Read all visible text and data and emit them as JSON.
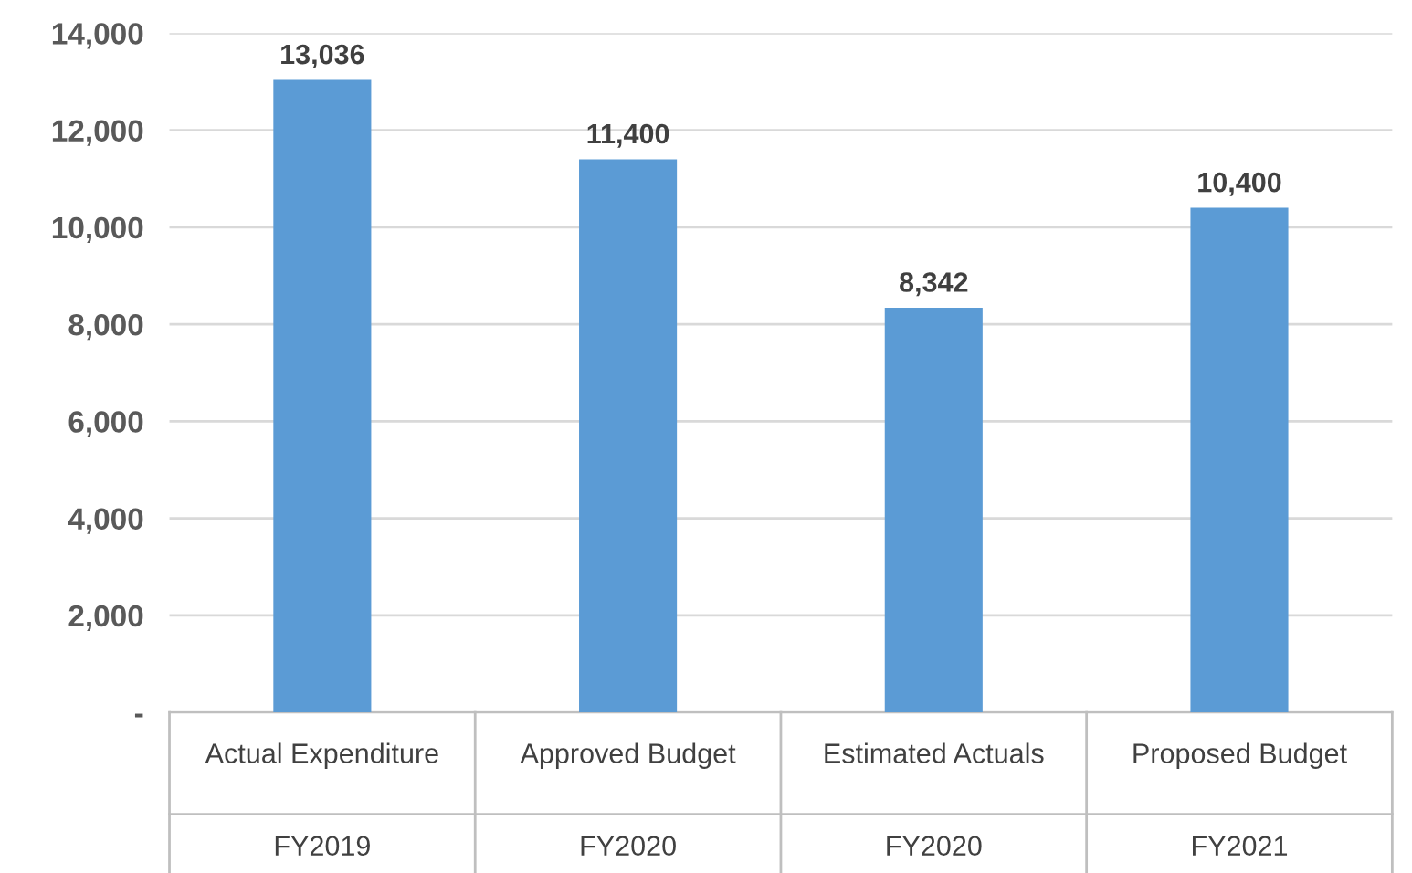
{
  "chart_data": {
    "type": "bar",
    "categories": [
      "Actual Expenditure",
      "Approved Budget",
      "Estimated Actuals",
      "Proposed Budget"
    ],
    "values": [
      13036,
      11400,
      8342,
      10400
    ],
    "color": "#5b9bd5",
    "annotations": [
      "FY2019",
      "FY2020",
      "FY2020",
      "FY2021"
    ],
    "ylim": [
      0,
      14000
    ],
    "yticks": [
      {
        "value": 0,
        "label": "-"
      },
      {
        "value": 2000,
        "label": "2,000"
      },
      {
        "value": 4000,
        "label": "4,000"
      },
      {
        "value": 6000,
        "label": "6,000"
      },
      {
        "value": 8000,
        "label": "8,000"
      },
      {
        "value": 10000,
        "label": "10,000"
      },
      {
        "value": 12000,
        "label": "12,000"
      },
      {
        "value": 14000,
        "label": "14,000"
      }
    ],
    "value_labels": [
      "13,036",
      "11,400",
      "8,342",
      "10,400"
    ],
    "grid": "y",
    "legend": false
  }
}
